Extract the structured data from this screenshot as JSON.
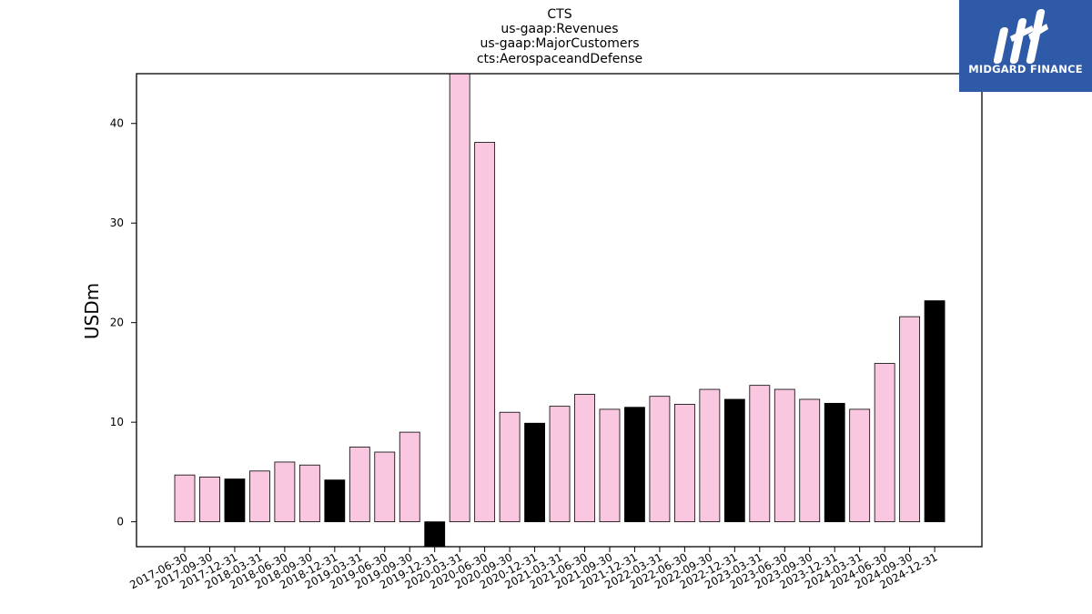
{
  "logo": {
    "text": "MIDGARD FINANCE",
    "background": "#2f5aa8"
  },
  "chart_data": {
    "type": "bar",
    "title_lines": [
      "CTS",
      "us-gaap:Revenues",
      "us-gaap:MajorCustomers",
      "cts:AerospaceandDefense"
    ],
    "xlabel": "",
    "ylabel": "USDm",
    "ylim": [
      -2.5,
      45
    ],
    "yticks": [
      0,
      10,
      20,
      30,
      40
    ],
    "grid": false,
    "colors": {
      "quarter": "#f9c8e0",
      "year_end": "#000000",
      "edge": "#000000"
    },
    "categories": [
      "2017-06-30",
      "2017-09-30",
      "2017-12-31",
      "2018-03-31",
      "2018-06-30",
      "2018-09-30",
      "2018-12-31",
      "2019-03-31",
      "2019-06-30",
      "2019-09-30",
      "2019-12-31",
      "2020-03-31",
      "2020-06-30",
      "2020-09-30",
      "2020-12-31",
      "2021-03-31",
      "2021-06-30",
      "2021-09-30",
      "2021-12-31",
      "2022-03-31",
      "2022-06-30",
      "2022-09-30",
      "2022-12-31",
      "2023-03-31",
      "2023-06-30",
      "2023-09-30",
      "2023-12-31",
      "2024-03-31",
      "2024-06-30",
      "2024-09-30",
      "2024-12-31"
    ],
    "values": [
      4.7,
      4.5,
      4.3,
      5.1,
      6.0,
      5.7,
      4.2,
      7.5,
      7.0,
      9.0,
      -2.5,
      45.0,
      38.1,
      11.0,
      9.9,
      11.6,
      12.8,
      11.3,
      11.5,
      12.6,
      11.8,
      13.3,
      12.3,
      13.7,
      13.3,
      12.3,
      11.9,
      11.3,
      15.9,
      20.6,
      22.2
    ]
  }
}
